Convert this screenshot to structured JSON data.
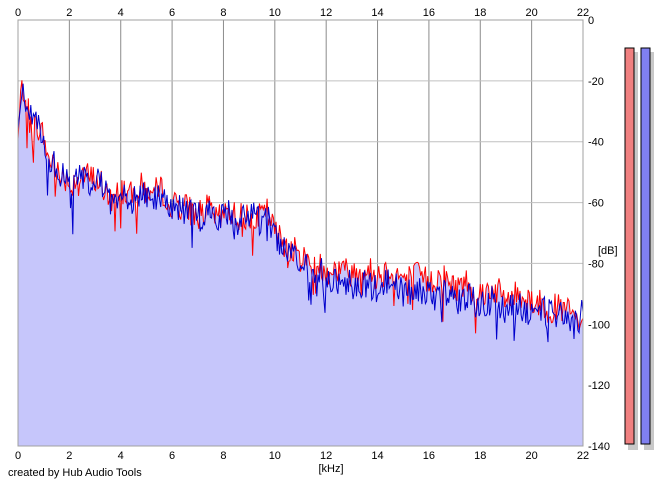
{
  "chart_data": {
    "type": "line",
    "title": "",
    "xlabel": "[kHz]",
    "ylabel": "[dB]",
    "xlim": [
      0,
      22
    ],
    "ylim": [
      -140,
      0
    ],
    "x_ticks": [
      "0",
      "2",
      "4",
      "6",
      "8",
      "10",
      "12",
      "14",
      "16",
      "18",
      "20",
      "22"
    ],
    "y_ticks": [
      "0",
      "-20",
      "-40",
      "-60",
      "-80",
      "-100",
      "-120",
      "-140"
    ],
    "grid": true,
    "fill_under": true,
    "x": [
      0,
      0.1,
      0.2,
      0.4,
      0.7,
      1.0,
      1.2,
      1.4,
      1.6,
      1.8,
      2.0,
      2.4,
      2.8,
      3.2,
      3.6,
      4.0,
      4.4,
      4.8,
      5.2,
      5.6,
      5.9,
      6.0,
      6.2,
      6.6,
      7.0,
      7.4,
      7.8,
      8.2,
      8.6,
      9.0,
      9.4,
      9.7,
      10.0,
      10.5,
      11.0,
      11.5,
      12.0,
      12.5,
      13.0,
      13.5,
      14.0,
      14.5,
      15.0,
      15.5,
      16.0,
      16.5,
      17.0,
      17.5,
      18.0,
      18.5,
      19.0,
      19.5,
      20.0,
      20.5,
      21.0,
      21.5,
      21.8,
      22.0
    ],
    "series": [
      {
        "color": "#ff0000",
        "values": [
          -40,
          -25,
          -22,
          -30,
          -35,
          -38,
          -47,
          -45,
          -52,
          -50,
          -55,
          -50,
          -52,
          -53,
          -60,
          -55,
          -58,
          -55,
          -57,
          -56,
          -58,
          -62,
          -60,
          -62,
          -64,
          -62,
          -66,
          -62,
          -65,
          -64,
          -65,
          -63,
          -70,
          -74,
          -78,
          -80,
          -82,
          -82,
          -83,
          -82,
          -84,
          -82,
          -85,
          -84,
          -86,
          -84,
          -88,
          -86,
          -90,
          -88,
          -92,
          -90,
          -92,
          -94,
          -95,
          -96,
          -100,
          -98
        ]
      },
      {
        "color": "#0000cc",
        "values": [
          -40,
          -24,
          -22,
          -30,
          -35,
          -38,
          -46,
          -45,
          -52,
          -51,
          -55,
          -52,
          -53,
          -54,
          -59,
          -56,
          -58,
          -57,
          -58,
          -58,
          -60,
          -62,
          -61,
          -63,
          -65,
          -63,
          -66,
          -63,
          -66,
          -64,
          -66,
          -65,
          -72,
          -76,
          -80,
          -82,
          -84,
          -86,
          -86,
          -87,
          -88,
          -86,
          -90,
          -88,
          -91,
          -90,
          -92,
          -91,
          -94,
          -92,
          -95,
          -94,
          -96,
          -96,
          -97,
          -98,
          -100,
          -96
        ]
      }
    ],
    "color_bars": [
      {
        "color": "#f08080"
      },
      {
        "color": "#8080f0"
      }
    ]
  },
  "footer": {
    "credit": "created by Hub Audio Tools"
  }
}
